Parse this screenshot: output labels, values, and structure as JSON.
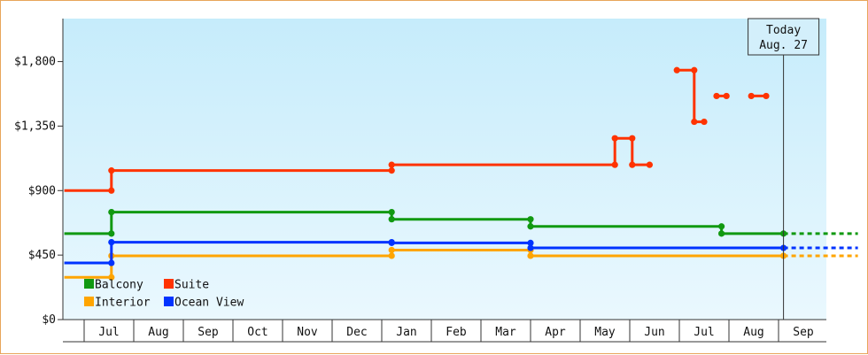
{
  "chart_data": {
    "type": "line",
    "title": "",
    "xlabel": "",
    "ylabel": "",
    "y_ticks": [
      "$0",
      "$450",
      "$900",
      "$1,350",
      "$1,800"
    ],
    "ylim": [
      0,
      2100
    ],
    "x_ticks": [
      "Jul",
      "Aug",
      "Sep",
      "Oct",
      "Nov",
      "Dec",
      "Jan",
      "Feb",
      "Mar",
      "Apr",
      "May",
      "Jun",
      "Jul",
      "Aug",
      "Sep"
    ],
    "xlim_months": [
      -0.41,
      15.6
    ],
    "grid": false,
    "legend_position": "bottom-left",
    "today": {
      "label_line1": "Today",
      "label_line2": "Aug. 27",
      "x": 14.1
    },
    "series": [
      {
        "name": "Balcony",
        "color": "#119911",
        "segments": [
          [
            [
              -0.4,
              600
            ],
            [
              0.55,
              600
            ],
            [
              0.55,
              750
            ],
            [
              6.2,
              750
            ],
            [
              6.2,
              700
            ],
            [
              9.0,
              700
            ],
            [
              9.0,
              650
            ],
            [
              12.85,
              650
            ],
            [
              12.85,
              600
            ],
            [
              14.1,
              600
            ]
          ]
        ],
        "projection": [
          [
            14.1,
            600
          ],
          [
            15.6,
            600
          ]
        ]
      },
      {
        "name": "Suite",
        "color": "#ff3300",
        "segments": [
          [
            [
              -0.4,
              900
            ],
            [
              0.55,
              900
            ],
            [
              0.55,
              1040
            ],
            [
              6.2,
              1040
            ],
            [
              6.2,
              1080
            ],
            [
              10.7,
              1080
            ],
            [
              10.7,
              1265
            ],
            [
              11.05,
              1265
            ],
            [
              11.05,
              1080
            ],
            [
              11.4,
              1080
            ]
          ],
          [
            [
              11.95,
              1740
            ],
            [
              12.3,
              1740
            ],
            [
              12.3,
              1380
            ],
            [
              12.5,
              1380
            ]
          ],
          [
            [
              12.75,
              1560
            ],
            [
              12.95,
              1560
            ]
          ],
          [
            [
              13.45,
              1560
            ],
            [
              13.75,
              1560
            ]
          ]
        ],
        "projection": null
      },
      {
        "name": "Interior",
        "color": "#ffa500",
        "segments": [
          [
            [
              -0.4,
              295
            ],
            [
              0.55,
              295
            ],
            [
              0.55,
              445
            ],
            [
              6.2,
              445
            ],
            [
              6.2,
              485
            ],
            [
              9.0,
              485
            ],
            [
              9.0,
              445
            ],
            [
              14.1,
              445
            ]
          ]
        ],
        "projection": [
          [
            14.1,
            445
          ],
          [
            15.6,
            445
          ]
        ]
      },
      {
        "name": "Ocean View",
        "color": "#0033ff",
        "segments": [
          [
            [
              -0.4,
              395
            ],
            [
              0.55,
              395
            ],
            [
              0.55,
              540
            ],
            [
              6.2,
              540
            ],
            [
              6.2,
              535
            ],
            [
              9.0,
              535
            ],
            [
              9.0,
              500
            ],
            [
              14.1,
              500
            ]
          ]
        ],
        "projection": [
          [
            14.1,
            500
          ],
          [
            15.6,
            500
          ]
        ]
      }
    ],
    "legend_order": [
      "Balcony",
      "Suite",
      "Interior",
      "Ocean View"
    ],
    "colors": {
      "background_top": "#c6ecfb",
      "background_bottom": "#eaf8fe",
      "axis": "#333333",
      "frame": "#e8a55a"
    }
  }
}
